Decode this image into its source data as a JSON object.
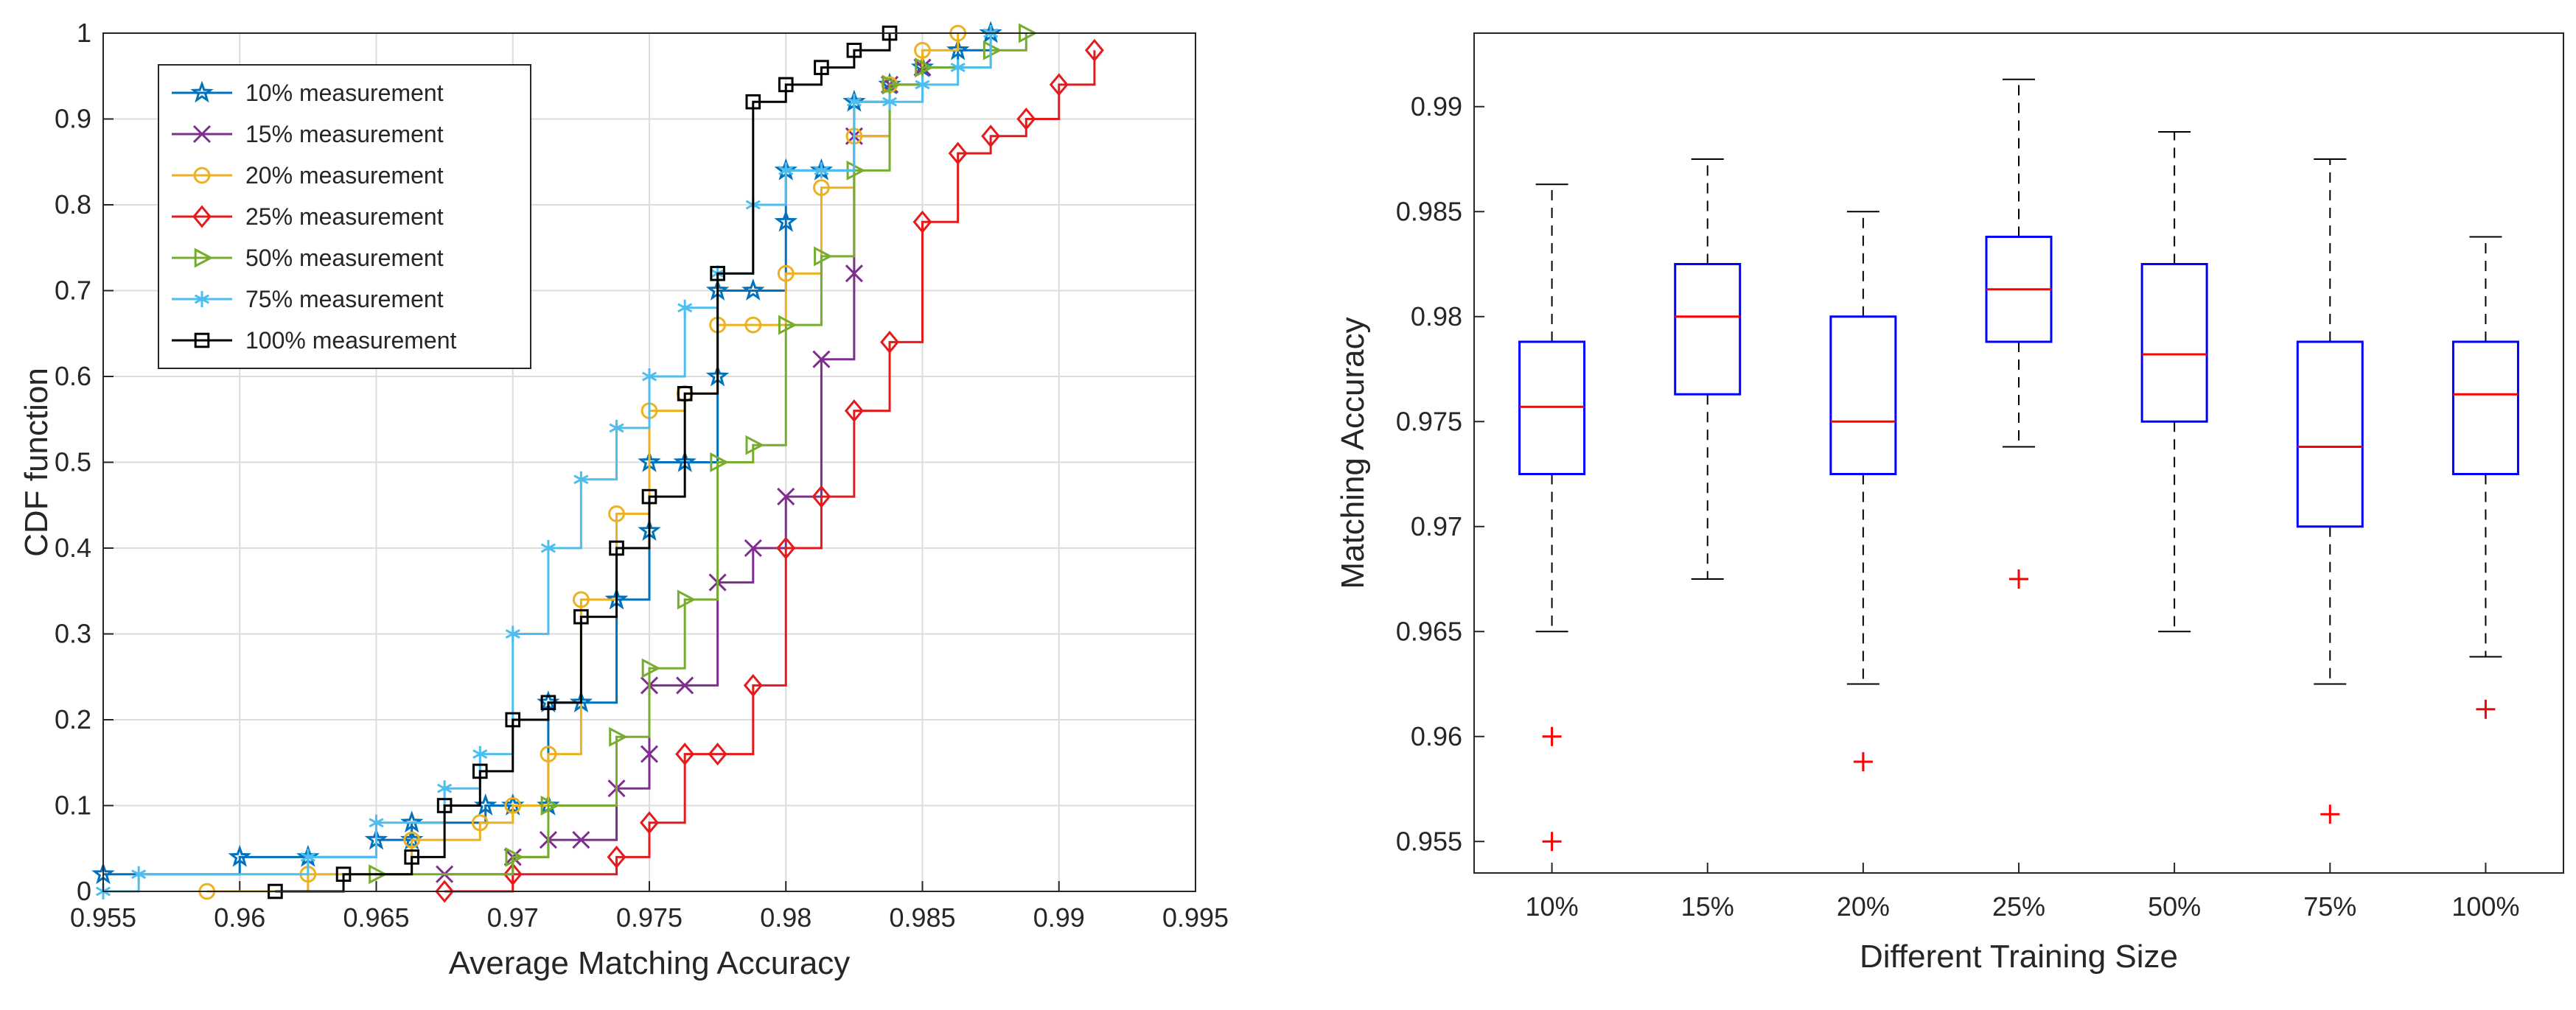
{
  "chart_data": [
    {
      "type": "line",
      "subtype": "empirical-cdf-stairs",
      "title": "",
      "xlabel": "Average Matching Accuracy",
      "ylabel": "CDF function",
      "xlim": [
        0.955,
        0.995
      ],
      "ylim": [
        0,
        1
      ],
      "xticks": [
        "0.955",
        "0.96",
        "0.965",
        "0.97",
        "0.975",
        "0.98",
        "0.985",
        "0.99",
        "0.995"
      ],
      "yticks": [
        "0",
        "0.1",
        "0.2",
        "0.3",
        "0.4",
        "0.5",
        "0.6",
        "0.7",
        "0.8",
        "0.9",
        "1"
      ],
      "grid": true,
      "legend_position": "top-left",
      "series": [
        {
          "name": "10% measurement",
          "color": "#0072BD",
          "marker": "star",
          "x": [
            0.955,
            0.96,
            0.9625,
            0.965,
            0.9663,
            0.9663,
            0.969,
            0.97,
            0.9713,
            0.9713,
            0.9725,
            0.9738,
            0.9738,
            0.975,
            0.975,
            0.9763,
            0.9775,
            0.9775,
            0.9788,
            0.98,
            0.98,
            0.9813,
            0.9825,
            0.9838,
            0.985,
            0.9863,
            0.9875
          ],
          "y": [
            0.02,
            0.04,
            0.04,
            0.06,
            0.06,
            0.08,
            0.1,
            0.1,
            0.1,
            0.22,
            0.22,
            0.34,
            0.34,
            0.42,
            0.5,
            0.5,
            0.6,
            0.7,
            0.7,
            0.78,
            0.84,
            0.84,
            0.92,
            0.94,
            0.96,
            0.98,
            1.0
          ]
        },
        {
          "name": "15% measurement",
          "color": "#7E2F8E",
          "marker": "x",
          "x": [
            0.9675,
            0.97,
            0.9713,
            0.9725,
            0.9738,
            0.975,
            0.975,
            0.9763,
            0.9775,
            0.9788,
            0.98,
            0.9813,
            0.9825,
            0.9825,
            0.9838,
            0.985
          ],
          "y": [
            0.02,
            0.04,
            0.06,
            0.06,
            0.12,
            0.16,
            0.24,
            0.24,
            0.36,
            0.4,
            0.46,
            0.62,
            0.72,
            0.88,
            0.94,
            0.96
          ]
        },
        {
          "name": "20% measurement",
          "color": "#EDB120",
          "marker": "circle",
          "x": [
            0.9588,
            0.9625,
            0.9663,
            0.9688,
            0.97,
            0.9713,
            0.9725,
            0.9738,
            0.975,
            0.9763,
            0.9775,
            0.9788,
            0.98,
            0.9813,
            0.9825,
            0.9838,
            0.985,
            0.9863
          ],
          "y": [
            0.0,
            0.02,
            0.06,
            0.08,
            0.1,
            0.16,
            0.34,
            0.44,
            0.56,
            0.58,
            0.66,
            0.66,
            0.72,
            0.82,
            0.88,
            0.94,
            0.98,
            1.0
          ]
        },
        {
          "name": "25% measurement",
          "color": "#E41A1C",
          "marker": "diamond",
          "x": [
            0.9675,
            0.97,
            0.9738,
            0.975,
            0.9763,
            0.9775,
            0.9788,
            0.98,
            0.9813,
            0.9825,
            0.9838,
            0.985,
            0.9863,
            0.9875,
            0.9888,
            0.99,
            0.9913
          ],
          "y": [
            0.0,
            0.02,
            0.04,
            0.08,
            0.16,
            0.16,
            0.24,
            0.4,
            0.46,
            0.56,
            0.64,
            0.78,
            0.86,
            0.88,
            0.9,
            0.94,
            0.98
          ]
        },
        {
          "name": "50% measurement",
          "color": "#77AC30",
          "marker": "triangle-right",
          "x": [
            0.965,
            0.97,
            0.9713,
            0.9738,
            0.975,
            0.9763,
            0.9775,
            0.9788,
            0.98,
            0.9813,
            0.9825,
            0.9838,
            0.985,
            0.9875,
            0.9888
          ],
          "y": [
            0.02,
            0.04,
            0.1,
            0.18,
            0.26,
            0.34,
            0.5,
            0.52,
            0.66,
            0.74,
            0.84,
            0.94,
            0.96,
            0.98,
            1.0
          ]
        },
        {
          "name": "75% measurement",
          "color": "#4DBEEE",
          "marker": "asterisk",
          "x": [
            0.955,
            0.9563,
            0.9625,
            0.965,
            0.9675,
            0.9688,
            0.97,
            0.9713,
            0.9725,
            0.9738,
            0.975,
            0.9763,
            0.9775,
            0.9788,
            0.98,
            0.9813,
            0.9825,
            0.9838,
            0.985,
            0.9863,
            0.9875
          ],
          "y": [
            0.0,
            0.02,
            0.04,
            0.08,
            0.12,
            0.16,
            0.3,
            0.4,
            0.48,
            0.54,
            0.6,
            0.68,
            0.72,
            0.8,
            0.84,
            0.84,
            0.92,
            0.92,
            0.94,
            0.96,
            1.0
          ]
        },
        {
          "name": "100% measurement",
          "color": "#000000",
          "marker": "square",
          "x": [
            0.9613,
            0.9638,
            0.9663,
            0.9675,
            0.9688,
            0.97,
            0.9713,
            0.9725,
            0.9738,
            0.975,
            0.9763,
            0.9775,
            0.9788,
            0.98,
            0.9813,
            0.9825,
            0.9838
          ],
          "y": [
            0.0,
            0.02,
            0.04,
            0.1,
            0.14,
            0.2,
            0.22,
            0.32,
            0.4,
            0.46,
            0.58,
            0.72,
            0.92,
            0.94,
            0.96,
            0.98,
            1.0
          ]
        }
      ]
    },
    {
      "type": "box",
      "title": "",
      "xlabel": "Different Training Size",
      "ylabel": "Matching Accuracy",
      "ylim": [
        0.9535,
        0.9935
      ],
      "yticks": [
        "0.955",
        "0.96",
        "0.965",
        "0.97",
        "0.975",
        "0.98",
        "0.985",
        "0.99"
      ],
      "categories": [
        "10%",
        "15%",
        "20%",
        "25%",
        "50%",
        "75%",
        "100%"
      ],
      "grid": false,
      "box_color": "#0000FF",
      "median_color": "#FF0000",
      "whisker_color": "#000000",
      "outlier_color": "#FF0000",
      "boxes": [
        {
          "min": 0.965,
          "q1": 0.9725,
          "median": 0.9757,
          "q3": 0.9788,
          "max": 0.9863,
          "outliers": [
            0.96,
            0.955
          ]
        },
        {
          "min": 0.9675,
          "q1": 0.9763,
          "median": 0.98,
          "q3": 0.9825,
          "max": 0.9875,
          "outliers": []
        },
        {
          "min": 0.9625,
          "q1": 0.9725,
          "median": 0.975,
          "q3": 0.98,
          "max": 0.985,
          "outliers": [
            0.9588
          ]
        },
        {
          "min": 0.9738,
          "q1": 0.9788,
          "median": 0.9813,
          "q3": 0.9838,
          "max": 0.9913,
          "outliers": [
            0.9675
          ]
        },
        {
          "min": 0.965,
          "q1": 0.975,
          "median": 0.9782,
          "q3": 0.9825,
          "max": 0.9888,
          "outliers": []
        },
        {
          "min": 0.9625,
          "q1": 0.97,
          "median": 0.9738,
          "q3": 0.9788,
          "max": 0.9875,
          "outliers": [
            0.9563
          ]
        },
        {
          "min": 0.9638,
          "q1": 0.9725,
          "median": 0.9763,
          "q3": 0.9788,
          "max": 0.9838,
          "outliers": [
            0.9613
          ]
        }
      ]
    }
  ]
}
